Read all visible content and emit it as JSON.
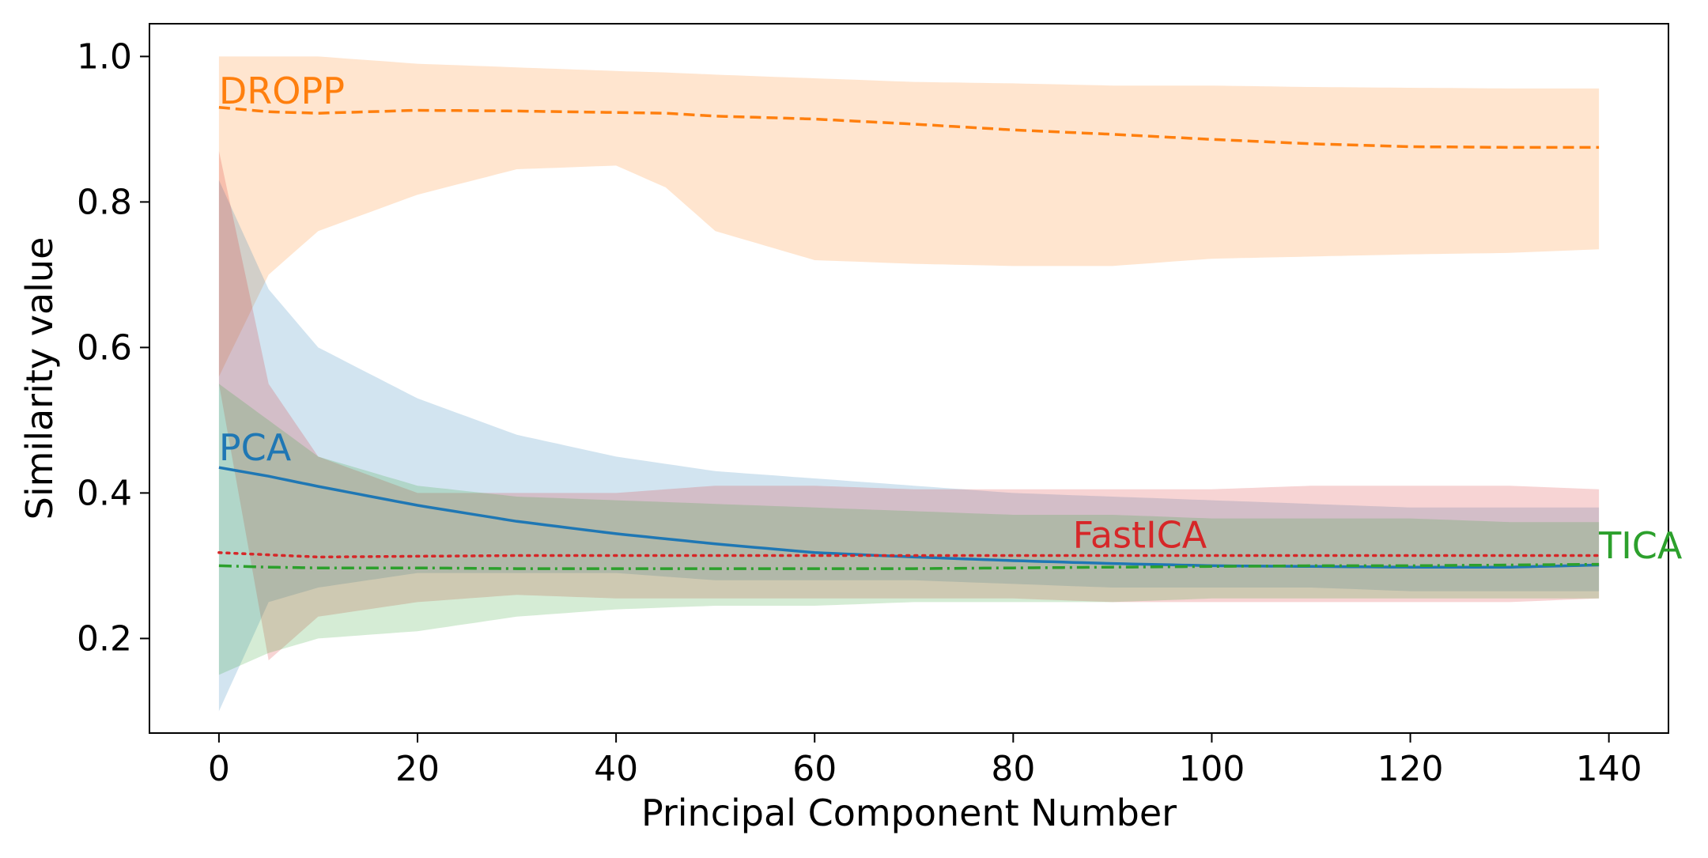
{
  "chart_data": {
    "type": "line",
    "title": "",
    "xlabel": "Principal Component Number",
    "ylabel": "Similarity value",
    "xlim": [
      -7,
      146
    ],
    "ylim": [
      0.07,
      1.045
    ],
    "xticks": [
      0,
      20,
      40,
      60,
      80,
      100,
      120,
      140
    ],
    "yticks": [
      0.2,
      0.4,
      0.6,
      0.8,
      1.0
    ],
    "ytick_labels": [
      "0.2",
      "0.4",
      "0.6",
      "0.8",
      "1.0"
    ],
    "grid": false,
    "legend": "none",
    "series": [
      {
        "name": "DROPP",
        "color": "#ff7f0e",
        "linestyle": "dashed",
        "label_at": [
          0,
          0.935
        ],
        "x": [
          0,
          5,
          10,
          20,
          30,
          40,
          45,
          50,
          60,
          70,
          80,
          90,
          100,
          110,
          120,
          130,
          139
        ],
        "y": [
          0.93,
          0.924,
          0.922,
          0.926,
          0.925,
          0.923,
          0.922,
          0.918,
          0.914,
          0.907,
          0.899,
          0.893,
          0.886,
          0.88,
          0.876,
          0.875,
          0.875
        ],
        "lower": [
          0.56,
          0.7,
          0.76,
          0.81,
          0.845,
          0.85,
          0.82,
          0.76,
          0.72,
          0.715,
          0.712,
          0.712,
          0.722,
          0.725,
          0.728,
          0.73,
          0.735
        ],
        "upper": [
          1.0,
          1.0,
          1.0,
          0.99,
          0.985,
          0.98,
          0.978,
          0.975,
          0.97,
          0.965,
          0.963,
          0.96,
          0.96,
          0.958,
          0.957,
          0.956,
          0.956
        ]
      },
      {
        "name": "PCA",
        "color": "#1f77b4",
        "linestyle": "solid",
        "label_at": [
          0,
          0.445
        ],
        "x": [
          0,
          5,
          10,
          20,
          30,
          40,
          50,
          60,
          70,
          80,
          90,
          100,
          110,
          120,
          130,
          139
        ],
        "y": [
          0.435,
          0.423,
          0.409,
          0.383,
          0.361,
          0.344,
          0.33,
          0.318,
          0.312,
          0.307,
          0.303,
          0.3,
          0.299,
          0.298,
          0.298,
          0.301
        ],
        "lower": [
          0.1,
          0.25,
          0.27,
          0.29,
          0.29,
          0.29,
          0.28,
          0.28,
          0.28,
          0.275,
          0.27,
          0.27,
          0.27,
          0.265,
          0.265,
          0.265
        ],
        "upper": [
          0.83,
          0.68,
          0.6,
          0.53,
          0.48,
          0.45,
          0.43,
          0.42,
          0.41,
          0.4,
          0.395,
          0.39,
          0.385,
          0.38,
          0.38,
          0.38
        ]
      },
      {
        "name": "FastICA",
        "color": "#d62728",
        "linestyle": "dotted",
        "label_at": [
          86,
          0.325
        ],
        "x": [
          0,
          5,
          10,
          20,
          30,
          40,
          50,
          60,
          70,
          80,
          90,
          100,
          110,
          120,
          130,
          139
        ],
        "y": [
          0.318,
          0.315,
          0.312,
          0.313,
          0.314,
          0.314,
          0.314,
          0.314,
          0.314,
          0.314,
          0.314,
          0.314,
          0.314,
          0.314,
          0.314,
          0.314
        ],
        "lower": [
          0.55,
          0.17,
          0.23,
          0.25,
          0.26,
          0.255,
          0.255,
          0.255,
          0.255,
          0.255,
          0.25,
          0.25,
          0.25,
          0.25,
          0.25,
          0.255
        ],
        "upper": [
          0.87,
          0.55,
          0.45,
          0.4,
          0.4,
          0.4,
          0.41,
          0.41,
          0.405,
          0.405,
          0.405,
          0.405,
          0.41,
          0.41,
          0.41,
          0.405
        ]
      },
      {
        "name": "TICA",
        "color": "#2ca02c",
        "linestyle": "dashdot",
        "label_at": [
          139,
          0.31
        ],
        "x": [
          0,
          5,
          10,
          20,
          30,
          40,
          50,
          60,
          70,
          80,
          90,
          100,
          110,
          120,
          130,
          139
        ],
        "y": [
          0.3,
          0.298,
          0.297,
          0.297,
          0.296,
          0.296,
          0.296,
          0.296,
          0.296,
          0.297,
          0.298,
          0.299,
          0.3,
          0.3,
          0.301,
          0.302
        ],
        "lower": [
          0.15,
          0.18,
          0.2,
          0.21,
          0.23,
          0.24,
          0.245,
          0.245,
          0.25,
          0.25,
          0.25,
          0.255,
          0.255,
          0.255,
          0.255,
          0.255
        ],
        "upper": [
          0.55,
          0.5,
          0.45,
          0.41,
          0.395,
          0.39,
          0.385,
          0.38,
          0.375,
          0.37,
          0.37,
          0.365,
          0.365,
          0.365,
          0.36,
          0.36
        ]
      }
    ]
  }
}
